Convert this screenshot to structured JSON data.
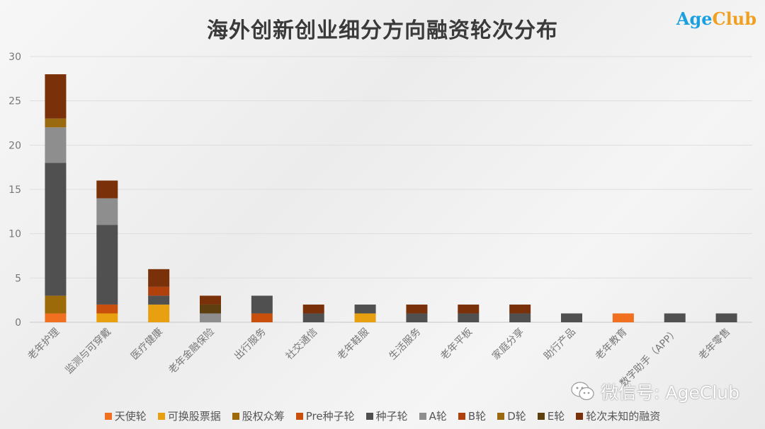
{
  "chart_data": {
    "type": "bar",
    "stacked": true,
    "title": "海外创新创业细分方向融资轮次分布",
    "xlabel": "",
    "ylabel": "",
    "ylim": [
      0,
      30
    ],
    "yticks": [
      0,
      5,
      10,
      15,
      20,
      25,
      30
    ],
    "grid": true,
    "legend_position": "bottom",
    "categories": [
      "老年护理",
      "监测与可穿戴",
      "医疗健康",
      "老年金融保险",
      "出行服务",
      "社交通信",
      "老年鞋服",
      "生活服务",
      "老年平板",
      "家庭分享",
      "助行产品",
      "老年教育",
      "数字助手（APP）",
      "老年零售"
    ],
    "series": [
      {
        "name": "天使轮",
        "color": "#f07020",
        "values": [
          1,
          0,
          0,
          0,
          0,
          0,
          0,
          0,
          0,
          0,
          0,
          1,
          0,
          0
        ]
      },
      {
        "name": "可换股票据",
        "color": "#e8a010",
        "values": [
          0,
          1,
          2,
          0,
          0,
          0,
          1,
          0,
          0,
          0,
          0,
          0,
          0,
          0
        ]
      },
      {
        "name": "股权众筹",
        "color": "#9c6a08",
        "values": [
          2,
          0,
          0,
          0,
          0,
          0,
          0,
          0,
          0,
          0,
          0,
          0,
          0,
          0
        ]
      },
      {
        "name": "Pre种子轮",
        "color": "#c8500c",
        "values": [
          0,
          1,
          0,
          0,
          1,
          0,
          0,
          0,
          0,
          0,
          0,
          0,
          0,
          0
        ]
      },
      {
        "name": "种子轮",
        "color": "#505050",
        "values": [
          15,
          9,
          1,
          0,
          2,
          1,
          1,
          1,
          1,
          1,
          1,
          0,
          1,
          1
        ]
      },
      {
        "name": "A轮",
        "color": "#8e8e8e",
        "values": [
          4,
          3,
          0,
          1,
          0,
          0,
          0,
          0,
          0,
          0,
          0,
          0,
          0,
          0
        ]
      },
      {
        "name": "B轮",
        "color": "#b0400c",
        "values": [
          0,
          0,
          1,
          0,
          0,
          0,
          0,
          0,
          0,
          0,
          0,
          0,
          0,
          0
        ]
      },
      {
        "name": "D轮",
        "color": "#9a6a10",
        "values": [
          1,
          0,
          0,
          0,
          0,
          0,
          0,
          0,
          0,
          0,
          0,
          0,
          0,
          0
        ]
      },
      {
        "name": "E轮",
        "color": "#5e4010",
        "values": [
          0,
          0,
          0,
          1,
          0,
          0,
          0,
          0,
          0,
          0,
          0,
          0,
          0,
          0
        ]
      },
      {
        "name": "轮次未知的融资",
        "color": "#7a3008",
        "values": [
          5,
          2,
          2,
          1,
          0,
          1,
          0,
          1,
          1,
          1,
          0,
          0,
          0,
          0
        ]
      }
    ]
  },
  "logo": {
    "part1": "Age",
    "part2": "Club"
  },
  "watermark": {
    "text": "微信号: AgeClub",
    "icon": "wechat-icon"
  }
}
